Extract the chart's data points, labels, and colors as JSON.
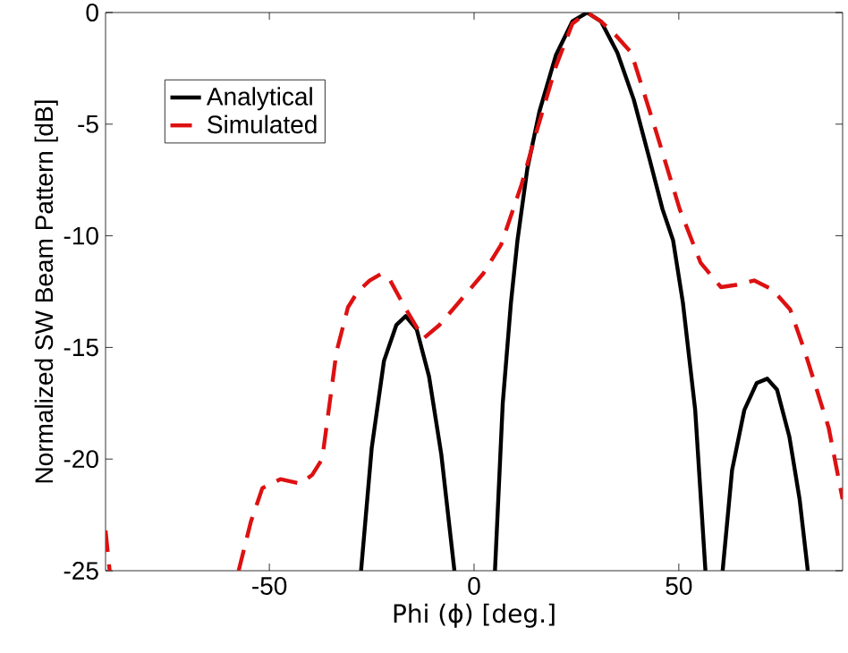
{
  "chart_data": {
    "type": "line",
    "xlabel": "Phi (ϕ) [deg.]",
    "ylabel": "Normalized SW Beam Pattern [dB]",
    "xlim": [
      -90,
      90
    ],
    "ylim": [
      -25,
      0
    ],
    "xticks": [
      -50,
      0,
      50
    ],
    "yticks": [
      -25,
      -20,
      -15,
      -10,
      -5,
      0
    ],
    "legend": "top left",
    "grid": false,
    "series": [
      {
        "name": "Analytical",
        "color": "#000000",
        "line_style": "solid",
        "x": [
          -27.6,
          -25,
          -22,
          -19,
          -16.7,
          -14,
          -11,
          -8,
          -4.8,
          null,
          5.1,
          7,
          9,
          10.6,
          13,
          16,
          20,
          24,
          27.6,
          31,
          35,
          39,
          42.9,
          46,
          48.6,
          51,
          54,
          56.5,
          null,
          60.7,
          63,
          66,
          69,
          71.6,
          74,
          77,
          79.5,
          81.5
        ],
        "values": [
          -25,
          -19.5,
          -15.6,
          -14,
          -13.6,
          -14.2,
          -16.3,
          -19.8,
          -25,
          null,
          -25,
          -17.5,
          -13,
          -10.2,
          -7,
          -4.4,
          -1.9,
          -0.4,
          0,
          -0.4,
          -1.8,
          -3.9,
          -6.6,
          -8.8,
          -10.2,
          -13,
          -17.8,
          -25,
          null,
          -25,
          -20.5,
          -17.8,
          -16.6,
          -16.4,
          -16.9,
          -19,
          -21.8,
          -25
        ]
      },
      {
        "name": "Simulated",
        "color": "#dd1111",
        "line_style": "dashed",
        "x": [
          -90,
          -89,
          null,
          -57.5,
          -54.5,
          -51.7,
          -47.3,
          -42.4,
          -39.5,
          -37.1,
          -33.6,
          -30.8,
          -28.4,
          -25.5,
          -22.7,
          -20.5,
          -16.6,
          -12.4,
          -8.5,
          -5.2,
          2.2,
          6.6,
          11.6,
          15.3,
          20,
          24,
          27.6,
          31,
          34.5,
          38.4,
          44.4,
          50.2,
          55.3,
          60.3,
          64,
          68.4,
          72.8,
          77.2,
          80.8,
          86.6,
          90
        ],
        "values": [
          -23.2,
          -25,
          null,
          -25,
          -22.8,
          -21.3,
          -20.9,
          -21.1,
          -20.7,
          -20,
          -15.2,
          -13.2,
          -12.5,
          -12,
          -11.7,
          -12,
          -13.3,
          -14.6,
          -14,
          -13.3,
          -11.7,
          -10.4,
          -7.7,
          -5.3,
          -2.4,
          -0.5,
          0,
          -0.4,
          -1,
          -1.8,
          -5.3,
          -8.8,
          -11.2,
          -12.3,
          -12.2,
          -12,
          -12.4,
          -13.3,
          -15.2,
          -18.6,
          -21.8
        ]
      }
    ]
  }
}
